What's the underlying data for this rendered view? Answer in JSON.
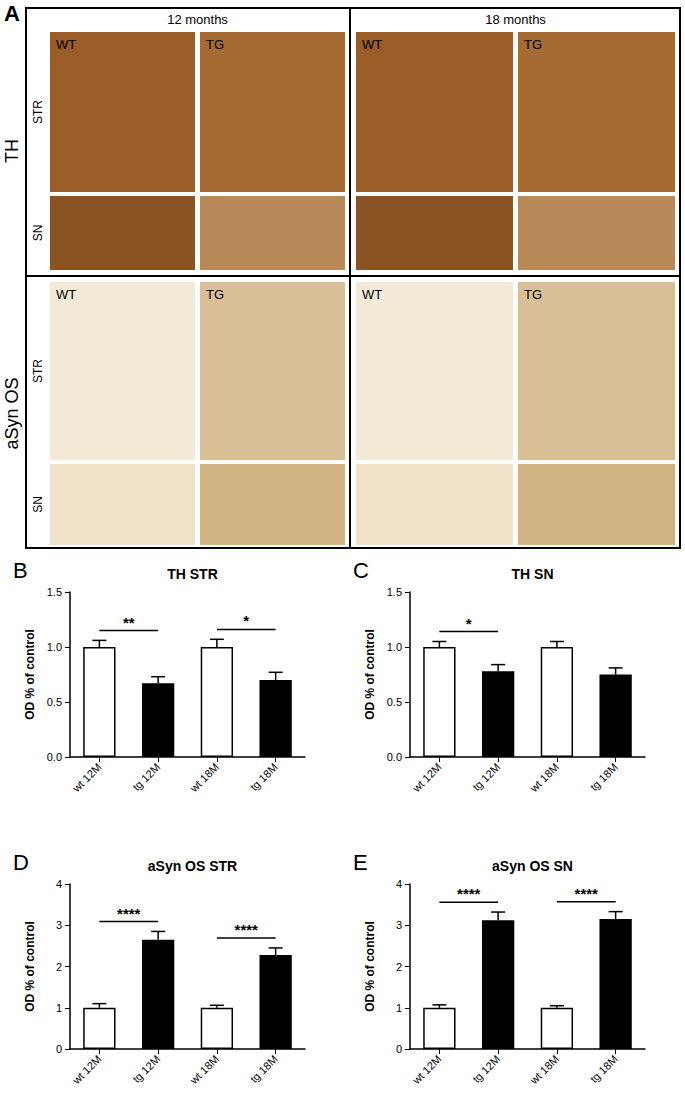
{
  "image_panel": {
    "panel": "A",
    "columns": [
      "12 months",
      "18 months"
    ],
    "cells": [
      "WT",
      "TG"
    ],
    "groups": [
      {
        "label": "TH",
        "rows": [
          "STR",
          "SN"
        ]
      },
      {
        "label": "aSyn OS",
        "rows": [
          "STR",
          "SN"
        ]
      }
    ]
  },
  "chart_data": [
    {
      "panel": "B",
      "type": "bar",
      "title": "TH STR",
      "y_label": "OD % of control",
      "categories": [
        "wt 12M",
        "tg 12M",
        "wt 18M",
        "tg 18M"
      ],
      "values": [
        1.0,
        0.67,
        1.0,
        0.7
      ],
      "errors": [
        0.06,
        0.06,
        0.07,
        0.07
      ],
      "colors": [
        "#ffffff",
        "#000000",
        "#ffffff",
        "#000000"
      ],
      "ylim": [
        0,
        1.5
      ],
      "yticks": [
        {
          "value": 0,
          "label": "0.0"
        },
        {
          "value": 0.5,
          "label": "0.5"
        },
        {
          "value": 1,
          "label": "1.0"
        },
        {
          "value": 1.5,
          "label": "1.5"
        }
      ],
      "grid": false,
      "annotations": [
        {
          "text": "**",
          "from": "wt 12M",
          "to": "tg 12M"
        },
        {
          "text": "*",
          "from": "wt 18M",
          "to": "tg 18M"
        }
      ]
    },
    {
      "panel": "C",
      "type": "bar",
      "title": "TH SN",
      "y_label": "OD % of control",
      "categories": [
        "wt 12M",
        "tg 12M",
        "wt 18M",
        "tg 18M"
      ],
      "values": [
        1.0,
        0.78,
        1.0,
        0.75
      ],
      "errors": [
        0.05,
        0.06,
        0.05,
        0.06
      ],
      "colors": [
        "#ffffff",
        "#000000",
        "#ffffff",
        "#000000"
      ],
      "ylim": [
        0,
        1.5
      ],
      "yticks": [
        {
          "value": 0,
          "label": "0.0"
        },
        {
          "value": 0.5,
          "label": "0.5"
        },
        {
          "value": 1,
          "label": "1.0"
        },
        {
          "value": 1.5,
          "label": "1.5"
        }
      ],
      "grid": false,
      "annotations": [
        {
          "text": "*",
          "from": "wt 12M",
          "to": "tg 12M"
        }
      ]
    },
    {
      "panel": "D",
      "type": "bar",
      "title": "aSyn OS STR",
      "y_label": "OD % of control",
      "categories": [
        "wt 12M",
        "tg 12M",
        "wt 18M",
        "tg 18M"
      ],
      "values": [
        1.0,
        2.65,
        1.0,
        2.28
      ],
      "errors": [
        0.1,
        0.2,
        0.06,
        0.17
      ],
      "colors": [
        "#ffffff",
        "#000000",
        "#ffffff",
        "#000000"
      ],
      "ylim": [
        0,
        4
      ],
      "yticks": [
        0,
        1,
        2,
        3,
        4
      ],
      "grid": false,
      "annotations": [
        {
          "text": "****",
          "from": "wt 12M",
          "to": "tg 12M"
        },
        {
          "text": "****",
          "from": "wt 18M",
          "to": "tg 18M"
        }
      ]
    },
    {
      "panel": "E",
      "type": "bar",
      "title": "aSyn OS SN",
      "y_label": "OD % of control",
      "categories": [
        "wt 12M",
        "tg 12M",
        "wt 18M",
        "tg 18M"
      ],
      "values": [
        1.0,
        3.12,
        1.0,
        3.15
      ],
      "errors": [
        0.07,
        0.2,
        0.05,
        0.18
      ],
      "colors": [
        "#ffffff",
        "#000000",
        "#ffffff",
        "#000000"
      ],
      "ylim": [
        0,
        4
      ],
      "yticks": [
        0,
        1,
        2,
        3,
        4
      ],
      "grid": false,
      "annotations": [
        {
          "text": "****",
          "from": "wt 12M",
          "to": "tg 12M"
        },
        {
          "text": "****",
          "from": "wt 18M",
          "to": "tg 18M"
        }
      ]
    }
  ]
}
